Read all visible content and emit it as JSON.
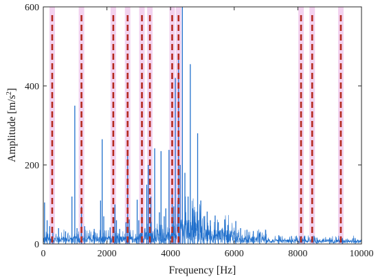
{
  "chart_data": {
    "type": "line",
    "title": "",
    "xlabel": "Frequency [Hz]",
    "ylabel_main": "Amplitude [m/s",
    "ylabel_sup": "2",
    "ylabel_end": "]",
    "xlim": [
      0,
      10000
    ],
    "ylim": [
      0,
      600
    ],
    "xticks": [
      0,
      2000,
      4000,
      6000,
      8000,
      10000
    ],
    "xtick_labels": [
      "0",
      "2000",
      "4000",
      "6000",
      "8000",
      "10000"
    ],
    "yticks": [
      0,
      200,
      400,
      600
    ],
    "ytick_labels": [
      "0",
      "200",
      "400",
      "600"
    ],
    "grid": false,
    "legend": "none",
    "colors": {
      "spectrum": "#1f6fcc",
      "marker_dash": "#b52a1f",
      "marker_band": "#f2d2ef",
      "axis": "#262626"
    },
    "spectrum_peaks": [
      {
        "x": 40,
        "y": 105
      },
      {
        "x": 120,
        "y": 60
      },
      {
        "x": 200,
        "y": 45
      },
      {
        "x": 300,
        "y": 30
      },
      {
        "x": 480,
        "y": 40
      },
      {
        "x": 700,
        "y": 32
      },
      {
        "x": 900,
        "y": 120
      },
      {
        "x": 990,
        "y": 350
      },
      {
        "x": 1060,
        "y": 40
      },
      {
        "x": 1200,
        "y": 95
      },
      {
        "x": 1300,
        "y": 45
      },
      {
        "x": 1600,
        "y": 38
      },
      {
        "x": 1800,
        "y": 110
      },
      {
        "x": 1850,
        "y": 265
      },
      {
        "x": 1900,
        "y": 70
      },
      {
        "x": 2100,
        "y": 42
      },
      {
        "x": 2250,
        "y": 100
      },
      {
        "x": 2300,
        "y": 60
      },
      {
        "x": 2400,
        "y": 38
      },
      {
        "x": 2600,
        "y": 55
      },
      {
        "x": 2650,
        "y": 225
      },
      {
        "x": 2700,
        "y": 62
      },
      {
        "x": 2950,
        "y": 112
      },
      {
        "x": 3000,
        "y": 60
      },
      {
        "x": 3100,
        "y": 80
      },
      {
        "x": 3250,
        "y": 150
      },
      {
        "x": 3300,
        "y": 200
      },
      {
        "x": 3380,
        "y": 120
      },
      {
        "x": 3500,
        "y": 242
      },
      {
        "x": 3650,
        "y": 80
      },
      {
        "x": 3700,
        "y": 235
      },
      {
        "x": 3800,
        "y": 70
      },
      {
        "x": 3850,
        "y": 90
      },
      {
        "x": 3950,
        "y": 238
      },
      {
        "x": 4050,
        "y": 140
      },
      {
        "x": 4100,
        "y": 95
      },
      {
        "x": 4150,
        "y": 420
      },
      {
        "x": 4250,
        "y": 480
      },
      {
        "x": 4300,
        "y": 200
      },
      {
        "x": 4370,
        "y": 600
      },
      {
        "x": 4450,
        "y": 180
      },
      {
        "x": 4550,
        "y": 120
      },
      {
        "x": 4620,
        "y": 455
      },
      {
        "x": 4700,
        "y": 90
      },
      {
        "x": 4750,
        "y": 70
      },
      {
        "x": 4850,
        "y": 280
      },
      {
        "x": 4950,
        "y": 110
      },
      {
        "x": 5050,
        "y": 70
      },
      {
        "x": 5150,
        "y": 82
      },
      {
        "x": 5250,
        "y": 60
      },
      {
        "x": 5400,
        "y": 72
      },
      {
        "x": 5500,
        "y": 55
      },
      {
        "x": 5700,
        "y": 62
      },
      {
        "x": 5800,
        "y": 48
      },
      {
        "x": 6050,
        "y": 58
      },
      {
        "x": 6200,
        "y": 40
      },
      {
        "x": 6400,
        "y": 36
      },
      {
        "x": 6600,
        "y": 32
      },
      {
        "x": 6800,
        "y": 27
      },
      {
        "x": 7000,
        "y": 25
      },
      {
        "x": 7400,
        "y": 22
      },
      {
        "x": 7800,
        "y": 20
      },
      {
        "x": 8200,
        "y": 18
      },
      {
        "x": 8600,
        "y": 16
      },
      {
        "x": 9000,
        "y": 16
      },
      {
        "x": 9400,
        "y": 15
      },
      {
        "x": 9800,
        "y": 14
      }
    ],
    "marker_lines": [
      280,
      1200,
      2200,
      2650,
      3100,
      3350,
      4050,
      4250,
      8100,
      8450,
      9350
    ]
  }
}
